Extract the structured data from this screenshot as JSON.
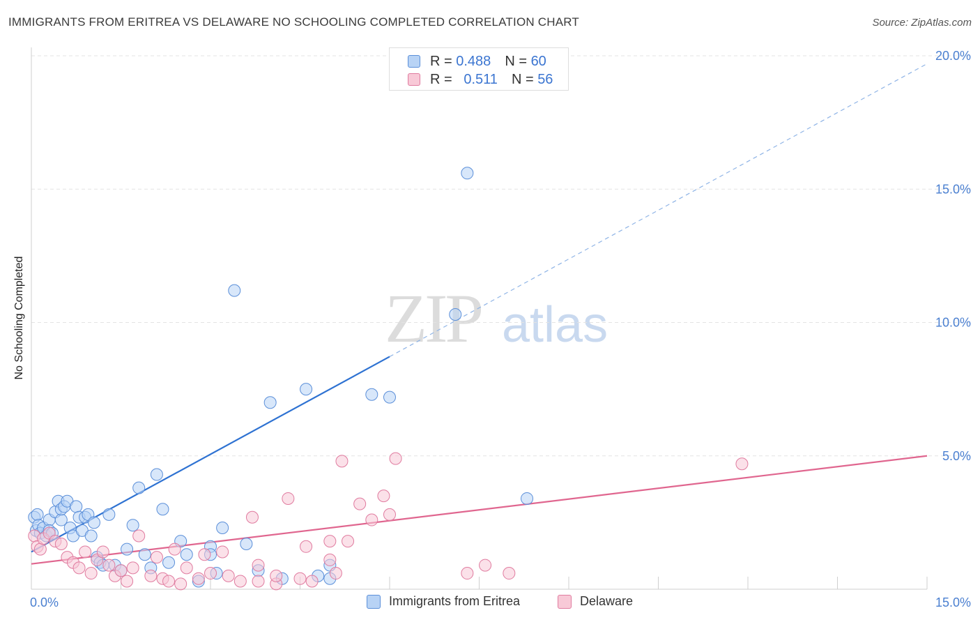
{
  "header": {
    "title": "IMMIGRANTS FROM ERITREA VS DELAWARE NO SCHOOLING COMPLETED CORRELATION CHART",
    "source": "Source: ZipAtlas.com"
  },
  "watermark": {
    "zip": "ZIP",
    "atlas": "atlas"
  },
  "legend": {
    "series": [
      {
        "name": "Immigrants from Eritrea",
        "r_label": "R =",
        "r_value": "0.488",
        "n_label": "N =",
        "n_value": "60",
        "fill": "#b8d3f5",
        "stroke": "#5b8fd9"
      },
      {
        "name": "Delaware",
        "r_label": "R =",
        "r_value": "0.511",
        "n_label": "N =",
        "n_value": "56",
        "fill": "#f8c9d7",
        "stroke": "#e07b9f"
      }
    ]
  },
  "chart_data": {
    "type": "scatter",
    "title": "IMMIGRANTS FROM ERITREA VS DELAWARE NO SCHOOLING COMPLETED CORRELATION CHART",
    "xlabel": "",
    "ylabel": "No Schooling Completed",
    "xlim": [
      0,
      15
    ],
    "ylim": [
      0,
      20
    ],
    "x_tick_labels": [
      "0.0%",
      "15.0%"
    ],
    "y_ticks": [
      5,
      10,
      15,
      20
    ],
    "y_tick_labels": [
      "5.0%",
      "10.0%",
      "15.0%",
      "20.0%"
    ],
    "series": [
      {
        "name": "Immigrants from Eritrea",
        "color": "#5b8fd9",
        "fill": "#b8d3f5",
        "trend": {
          "x0": 0.0,
          "y0": 1.4,
          "x_solid_end": 6.0,
          "x1": 15.0,
          "y1": 19.7
        },
        "points": [
          [
            0.05,
            2.7
          ],
          [
            0.08,
            2.2
          ],
          [
            0.1,
            2.8
          ],
          [
            0.12,
            2.4
          ],
          [
            0.15,
            2.1
          ],
          [
            0.2,
            2.3
          ],
          [
            0.25,
            2.0
          ],
          [
            0.3,
            2.6
          ],
          [
            0.3,
            2.2
          ],
          [
            0.35,
            2.1
          ],
          [
            0.4,
            2.9
          ],
          [
            0.45,
            3.3
          ],
          [
            0.5,
            2.6
          ],
          [
            0.5,
            3.0
          ],
          [
            0.55,
            3.1
          ],
          [
            0.6,
            3.3
          ],
          [
            0.65,
            2.3
          ],
          [
            0.7,
            2.0
          ],
          [
            0.75,
            3.1
          ],
          [
            0.8,
            2.7
          ],
          [
            0.85,
            2.2
          ],
          [
            0.9,
            2.7
          ],
          [
            0.95,
            2.8
          ],
          [
            1.0,
            2.0
          ],
          [
            1.05,
            2.5
          ],
          [
            1.1,
            1.2
          ],
          [
            1.15,
            1.0
          ],
          [
            1.2,
            0.9
          ],
          [
            1.3,
            2.8
          ],
          [
            1.4,
            0.9
          ],
          [
            1.5,
            0.7
          ],
          [
            1.6,
            1.5
          ],
          [
            1.7,
            2.4
          ],
          [
            1.8,
            3.8
          ],
          [
            1.9,
            1.3
          ],
          [
            2.0,
            0.8
          ],
          [
            2.1,
            4.3
          ],
          [
            2.2,
            3.0
          ],
          [
            2.3,
            1.0
          ],
          [
            2.5,
            1.8
          ],
          [
            2.6,
            1.3
          ],
          [
            2.8,
            0.3
          ],
          [
            3.0,
            1.6
          ],
          [
            3.0,
            1.3
          ],
          [
            3.1,
            0.6
          ],
          [
            3.2,
            2.3
          ],
          [
            3.4,
            11.2
          ],
          [
            3.6,
            1.7
          ],
          [
            3.8,
            0.7
          ],
          [
            4.0,
            7.0
          ],
          [
            4.2,
            0.4
          ],
          [
            4.6,
            7.5
          ],
          [
            4.8,
            0.5
          ],
          [
            5.0,
            0.9
          ],
          [
            5.0,
            0.4
          ],
          [
            5.7,
            7.3
          ],
          [
            6.0,
            7.2
          ],
          [
            7.1,
            10.3
          ],
          [
            7.3,
            15.6
          ],
          [
            8.3,
            3.4
          ]
        ]
      },
      {
        "name": "Delaware",
        "color": "#e07b9f",
        "fill": "#f8c9d7",
        "trend": {
          "x0": 0.0,
          "y0": 0.95,
          "x1": 15.0,
          "y1": 5.0
        },
        "points": [
          [
            0.05,
            2.0
          ],
          [
            0.1,
            1.6
          ],
          [
            0.15,
            1.5
          ],
          [
            0.2,
            1.9
          ],
          [
            0.3,
            2.1
          ],
          [
            0.4,
            1.8
          ],
          [
            0.5,
            1.7
          ],
          [
            0.6,
            1.2
          ],
          [
            0.7,
            1.0
          ],
          [
            0.8,
            0.8
          ],
          [
            0.9,
            1.4
          ],
          [
            1.0,
            0.6
          ],
          [
            1.1,
            1.1
          ],
          [
            1.2,
            1.4
          ],
          [
            1.3,
            0.9
          ],
          [
            1.4,
            0.5
          ],
          [
            1.5,
            0.7
          ],
          [
            1.6,
            0.3
          ],
          [
            1.7,
            0.8
          ],
          [
            1.8,
            2.0
          ],
          [
            2.0,
            0.5
          ],
          [
            2.1,
            1.2
          ],
          [
            2.2,
            0.4
          ],
          [
            2.3,
            0.3
          ],
          [
            2.4,
            1.5
          ],
          [
            2.5,
            0.2
          ],
          [
            2.6,
            0.8
          ],
          [
            2.8,
            0.4
          ],
          [
            2.9,
            1.3
          ],
          [
            3.0,
            0.6
          ],
          [
            3.2,
            1.4
          ],
          [
            3.3,
            0.5
          ],
          [
            3.5,
            0.3
          ],
          [
            3.7,
            2.7
          ],
          [
            3.8,
            0.3
          ],
          [
            3.8,
            0.9
          ],
          [
            4.1,
            0.2
          ],
          [
            4.1,
            0.5
          ],
          [
            4.3,
            3.4
          ],
          [
            4.5,
            0.4
          ],
          [
            4.6,
            1.6
          ],
          [
            4.7,
            0.3
          ],
          [
            5.0,
            1.8
          ],
          [
            5.0,
            1.1
          ],
          [
            5.1,
            0.6
          ],
          [
            5.2,
            4.8
          ],
          [
            5.3,
            1.8
          ],
          [
            5.5,
            3.2
          ],
          [
            5.7,
            2.6
          ],
          [
            5.9,
            3.5
          ],
          [
            6.0,
            2.8
          ],
          [
            6.1,
            4.9
          ],
          [
            7.3,
            0.6
          ],
          [
            7.6,
            0.9
          ],
          [
            8.0,
            0.6
          ],
          [
            11.9,
            4.7
          ]
        ]
      }
    ]
  }
}
